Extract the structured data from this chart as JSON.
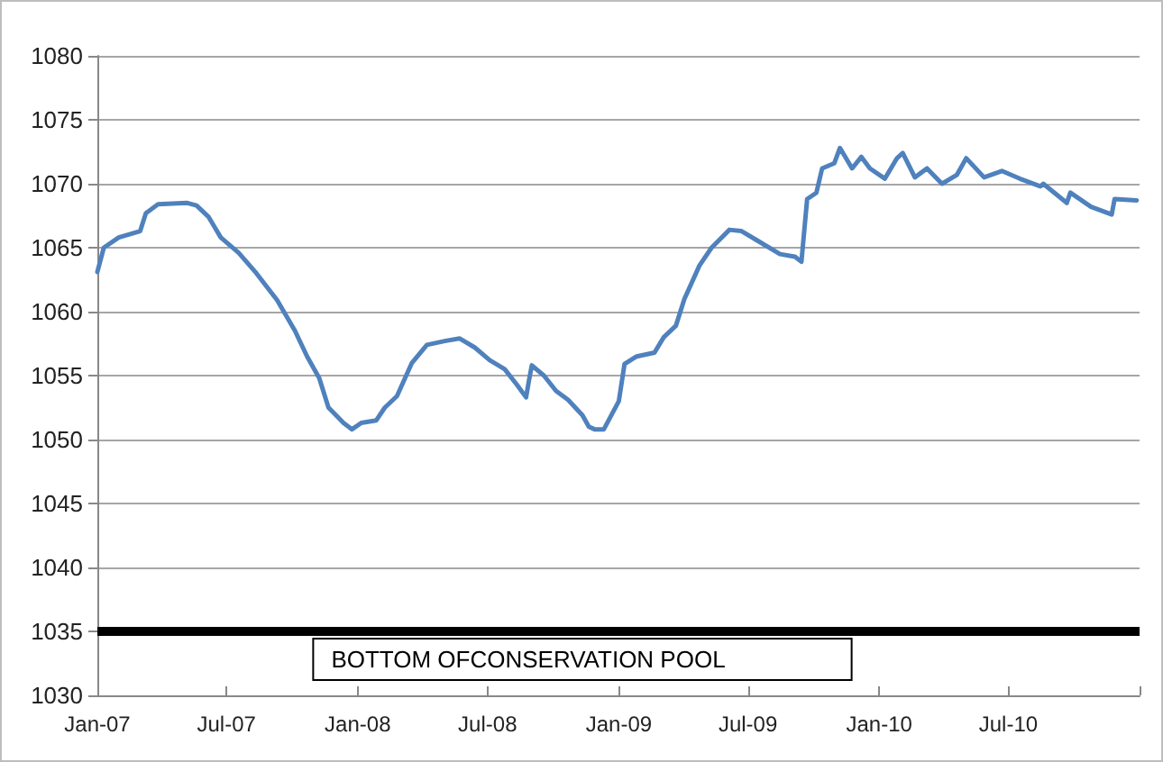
{
  "chart_data": {
    "type": "line",
    "x": [
      "2007-01-01",
      "2007-01-10",
      "2007-01-31",
      "2007-03-02",
      "2007-03-10",
      "2007-03-27",
      "2007-05-07",
      "2007-05-20",
      "2007-06-06",
      "2007-06-23",
      "2007-07-18",
      "2007-08-12",
      "2007-09-10",
      "2007-10-05",
      "2007-10-22",
      "2007-11-08",
      "2007-11-21",
      "2007-12-12",
      "2007-12-24",
      "2008-01-06",
      "2008-01-27",
      "2008-02-08",
      "2008-02-25",
      "2008-03-17",
      "2008-04-07",
      "2008-05-02",
      "2008-05-23",
      "2008-06-13",
      "2008-07-04",
      "2008-07-25",
      "2008-08-11",
      "2008-08-24",
      "2008-08-28",
      "2008-09-01",
      "2008-09-18",
      "2008-10-05",
      "2008-10-22",
      "2008-11-11",
      "2008-11-20",
      "2008-11-28",
      "2008-12-11",
      "2009-01-01",
      "2009-01-09",
      "2009-01-26",
      "2009-02-20",
      "2009-03-05",
      "2009-03-22",
      "2009-04-03",
      "2009-04-24",
      "2009-05-11",
      "2009-06-05",
      "2009-06-22",
      "2009-07-13",
      "2009-08-15",
      "2009-09-05",
      "2009-09-14",
      "2009-09-22",
      "2009-10-05",
      "2009-10-13",
      "2009-10-30",
      "2009-11-07",
      "2009-11-24",
      "2009-12-07",
      "2009-12-19",
      "2010-01-09",
      "2010-01-26",
      "2010-02-03",
      "2010-02-20",
      "2010-03-09",
      "2010-03-30",
      "2010-04-20",
      "2010-05-03",
      "2010-05-28",
      "2010-06-22",
      "2010-07-17",
      "2010-08-15",
      "2010-08-19",
      "2010-09-21",
      "2010-09-26",
      "2010-10-25",
      "2010-11-23",
      "2010-11-27",
      "2010-12-28"
    ],
    "series": [
      {
        "color": "#4f81bd",
        "values": [
          1063.1,
          1065.0,
          1065.8,
          1066.3,
          1067.7,
          1068.4,
          1068.5,
          1068.3,
          1067.4,
          1065.8,
          1064.6,
          1063.0,
          1060.9,
          1058.5,
          1056.5,
          1054.8,
          1052.5,
          1051.3,
          1050.8,
          1051.3,
          1051.5,
          1052.5,
          1053.4,
          1056.0,
          1057.4,
          1057.7,
          1057.9,
          1057.2,
          1056.2,
          1055.5,
          1054.3,
          1053.3,
          1054.6,
          1055.8,
          1055.0,
          1053.8,
          1053.1,
          1051.9,
          1051.0,
          1050.8,
          1050.8,
          1053.0,
          1055.9,
          1056.5,
          1056.8,
          1058.0,
          1058.9,
          1061.0,
          1063.6,
          1065.0,
          1066.4,
          1066.3,
          1065.6,
          1064.5,
          1064.3,
          1063.9,
          1068.8,
          1069.3,
          1071.2,
          1071.6,
          1072.8,
          1071.2,
          1072.1,
          1071.2,
          1070.4,
          1072.0,
          1072.4,
          1070.5,
          1071.2,
          1070.0,
          1070.7,
          1072.0,
          1070.5,
          1071.0,
          1070.4,
          1069.8,
          1070.0,
          1068.5,
          1069.3,
          1068.2,
          1067.6,
          1068.8,
          1068.7
        ]
      }
    ],
    "xlim": [
      "2007-01-01",
      "2011-01-01"
    ],
    "xticks": [
      {
        "value": "2007-01-01",
        "label": "Jan-07"
      },
      {
        "value": "2007-07-01",
        "label": "Jul-07"
      },
      {
        "value": "2008-01-01",
        "label": "Jan-08"
      },
      {
        "value": "2008-07-01",
        "label": "Jul-08"
      },
      {
        "value": "2009-01-01",
        "label": "Jan-09"
      },
      {
        "value": "2009-07-01",
        "label": "Jul-09"
      },
      {
        "value": "2010-01-01",
        "label": "Jan-10"
      },
      {
        "value": "2010-07-01",
        "label": "Jul-10"
      },
      {
        "value": "2011-01-01",
        "label": null
      }
    ],
    "ylim": [
      1030,
      1080
    ],
    "yticks": [
      1030,
      1035,
      1040,
      1045,
      1050,
      1055,
      1060,
      1065,
      1070,
      1075,
      1080
    ],
    "grid": "y",
    "ref_lines": [
      {
        "axis": "y",
        "value": 1035,
        "label": "BOTTOM OFCONSERVATION POOL",
        "color": "#000000"
      }
    ]
  }
}
